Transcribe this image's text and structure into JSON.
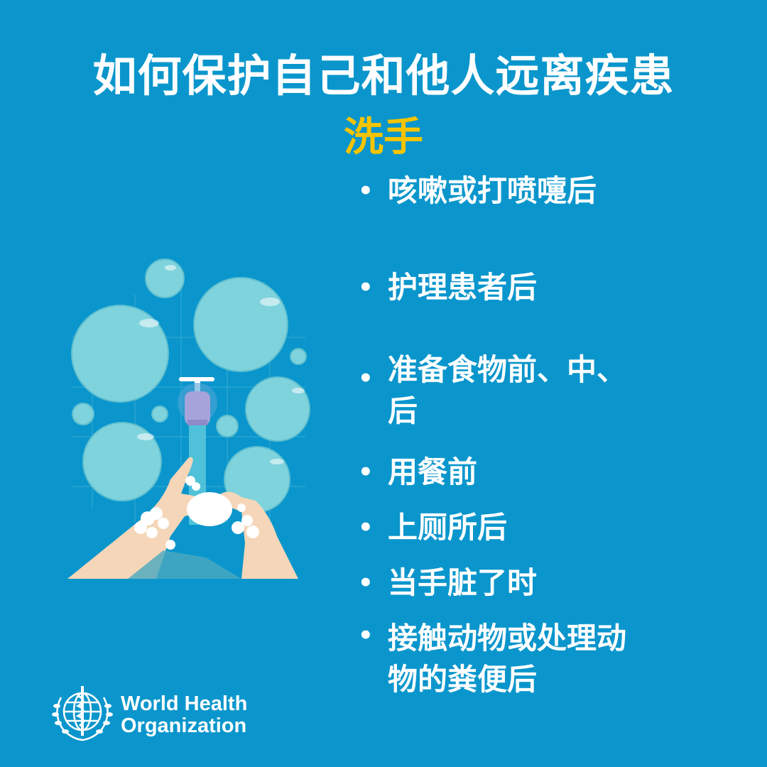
{
  "header": {
    "title": "如何保护自己和他人远离疾患",
    "subtitle": "洗手"
  },
  "bullets": [
    {
      "symbol": "•",
      "text": "咳嗽或打喷嚏后"
    },
    {
      "symbol": "•",
      "text": "护理患者后"
    },
    {
      "symbol": "•",
      "text": "准备食物前、中、后"
    },
    {
      "symbol": "•",
      "text": "用餐前"
    },
    {
      "symbol": "•",
      "text": "上厕所后"
    },
    {
      "symbol": "•",
      "text": "当手脏了时"
    },
    {
      "symbol": "•",
      "text": "接触动物或处理动物的粪便后"
    }
  ],
  "logo": {
    "line1": "World Health",
    "line2": "Organization",
    "icon": "who-emblem-icon"
  },
  "illustration": {
    "icon": "handwashing-illustration",
    "colors": {
      "bubble": "#7fd3dc",
      "skin": "#f5d6b8",
      "faucet": "#a5a3d9",
      "water": "#5cc9d9"
    }
  },
  "colors": {
    "background": "#0a96cc",
    "title": "#ffffff",
    "subtitle": "#f5c400"
  }
}
